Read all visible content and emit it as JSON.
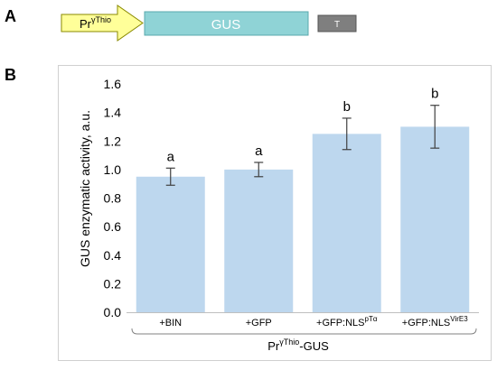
{
  "panels": {
    "a": "A",
    "b": "B"
  },
  "construct": {
    "promoter": "Pr",
    "promoter_sup": "γThio",
    "gene": "GUS",
    "terminator": "T",
    "colors": {
      "promoter": "#ffff99",
      "gene": "#8fd3d6",
      "terminator": "#7f7f7f"
    }
  },
  "chart_data": {
    "type": "bar",
    "categories": [
      {
        "main": "+BIN",
        "sup": ""
      },
      {
        "main": "+GFP",
        "sup": ""
      },
      {
        "main": "+GFP:NLS",
        "sup": "pTα"
      },
      {
        "main": "+GFP:NLS",
        "sup": "VirE3"
      }
    ],
    "values": [
      0.95,
      1.0,
      1.25,
      1.3
    ],
    "error": [
      0.06,
      0.05,
      0.11,
      0.15
    ],
    "significance": [
      "a",
      "a",
      "b",
      "b"
    ],
    "ylabel": "GUS enzymatic activity, a.u.",
    "group_label": {
      "main": "Pr",
      "sup": "γThio",
      "suffix": "-GUS"
    },
    "ylim": [
      0,
      1.6
    ],
    "yticks": [
      "0.0",
      "0.2",
      "0.4",
      "0.6",
      "0.8",
      "1.0",
      "1.2",
      "1.4",
      "1.6"
    ],
    "bar_color": "#bdd7ee",
    "grid": false
  }
}
